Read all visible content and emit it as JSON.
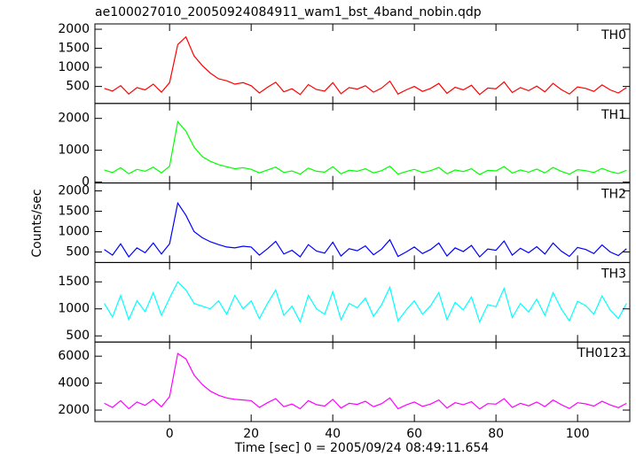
{
  "chart_data": {
    "type": "line",
    "title": "ae100027010_20050924084911_wam1_bst_4band_nobin.qdp",
    "xlabel": "Time [sec] 0 = 2005/09/24 08:49:11.654",
    "ylabel": "Counts/sec",
    "xlim": [
      -18.3,
      112.8
    ],
    "xticks": [
      0,
      20,
      40,
      60,
      80,
      100
    ],
    "x": [
      -16,
      -14,
      -12,
      -10,
      -8,
      -6,
      -4,
      -2,
      0,
      2,
      4,
      6,
      8,
      10,
      12,
      14,
      16,
      18,
      20,
      22,
      24,
      26,
      28,
      30,
      32,
      34,
      36,
      38,
      40,
      42,
      44,
      46,
      48,
      50,
      52,
      54,
      56,
      58,
      60,
      62,
      64,
      66,
      68,
      70,
      72,
      74,
      76,
      78,
      80,
      82,
      84,
      86,
      88,
      90,
      92,
      94,
      96,
      98,
      100,
      102,
      104,
      106,
      108,
      110,
      112
    ],
    "panels": [
      {
        "name": "TH0",
        "color": "#ff0000",
        "ylim": [
          55,
          2140
        ],
        "yticks": [
          500,
          1000,
          1500,
          2000
        ],
        "values": [
          450,
          380,
          520,
          300,
          470,
          410,
          560,
          350,
          600,
          1600,
          1800,
          1300,
          1050,
          850,
          700,
          650,
          560,
          600,
          520,
          330,
          480,
          610,
          360,
          440,
          290,
          550,
          420,
          380,
          600,
          310,
          470,
          430,
          520,
          350,
          460,
          640,
          300,
          410,
          500,
          370,
          450,
          580,
          320,
          480,
          410,
          530,
          290,
          460,
          440,
          620,
          340,
          470,
          390,
          510,
          360,
          580,
          420,
          300,
          490,
          450,
          370,
          540,
          410,
          330,
          470
        ]
      },
      {
        "name": "TH1",
        "color": "#00ff00",
        "ylim": [
          -28,
          2470
        ],
        "yticks": [
          0,
          1000,
          2000
        ],
        "values": [
          380,
          300,
          450,
          260,
          400,
          340,
          470,
          290,
          500,
          1900,
          1600,
          1100,
          800,
          650,
          550,
          480,
          420,
          450,
          400,
          290,
          380,
          470,
          300,
          350,
          250,
          440,
          340,
          310,
          480,
          260,
          370,
          340,
          420,
          290,
          360,
          500,
          250,
          330,
          400,
          300,
          360,
          460,
          260,
          380,
          330,
          420,
          240,
          370,
          350,
          490,
          280,
          380,
          310,
          410,
          290,
          460,
          340,
          250,
          390,
          360,
          300,
          430,
          330,
          270,
          370
        ]
      },
      {
        "name": "TH2",
        "color": "#0000ff",
        "ylim": [
          240,
          2195
        ],
        "yticks": [
          500,
          1000,
          1500,
          2000
        ],
        "values": [
          560,
          420,
          700,
          380,
          600,
          480,
          720,
          450,
          700,
          1700,
          1400,
          1000,
          850,
          750,
          680,
          620,
          600,
          640,
          620,
          420,
          580,
          760,
          450,
          540,
          380,
          680,
          520,
          470,
          740,
          400,
          580,
          530,
          650,
          430,
          570,
          800,
          390,
          500,
          620,
          460,
          560,
          720,
          400,
          600,
          510,
          660,
          380,
          570,
          540,
          770,
          420,
          590,
          480,
          630,
          450,
          720,
          520,
          390,
          610,
          560,
          460,
          670,
          500,
          410,
          580
        ]
      },
      {
        "name": "TH3",
        "color": "#00ffff",
        "ylim": [
          386,
          1858
        ],
        "yticks": [
          500,
          1000,
          1500
        ],
        "values": [
          1100,
          850,
          1250,
          800,
          1150,
          950,
          1300,
          880,
          1200,
          1500,
          1350,
          1100,
          1050,
          1000,
          1150,
          900,
          1250,
          1000,
          1150,
          820,
          1100,
          1350,
          880,
          1050,
          760,
          1250,
          1000,
          900,
          1320,
          800,
          1100,
          1020,
          1200,
          860,
          1080,
          1400,
          780,
          980,
          1150,
          900,
          1060,
          1300,
          800,
          1120,
          980,
          1220,
          760,
          1080,
          1040,
          1380,
          840,
          1100,
          940,
          1180,
          880,
          1300,
          1000,
          780,
          1140,
          1060,
          900,
          1240,
          980,
          820,
          1100
        ]
      },
      {
        "name": "TH0123",
        "color": "#ff00ff",
        "ylim": [
          1147,
          7050
        ],
        "yticks": [
          2000,
          4000,
          6000
        ],
        "values": [
          2500,
          2200,
          2700,
          2100,
          2600,
          2350,
          2800,
          2250,
          3000,
          6200,
          5800,
          4600,
          3900,
          3400,
          3100,
          2900,
          2800,
          2750,
          2700,
          2200,
          2550,
          2850,
          2250,
          2450,
          2100,
          2700,
          2400,
          2300,
          2800,
          2150,
          2500,
          2420,
          2650,
          2250,
          2480,
          2900,
          2100,
          2380,
          2600,
          2280,
          2450,
          2750,
          2150,
          2550,
          2400,
          2620,
          2080,
          2480,
          2440,
          2850,
          2200,
          2500,
          2320,
          2600,
          2260,
          2750,
          2400,
          2120,
          2550,
          2460,
          2300,
          2650,
          2380,
          2180,
          2500
        ]
      }
    ]
  }
}
